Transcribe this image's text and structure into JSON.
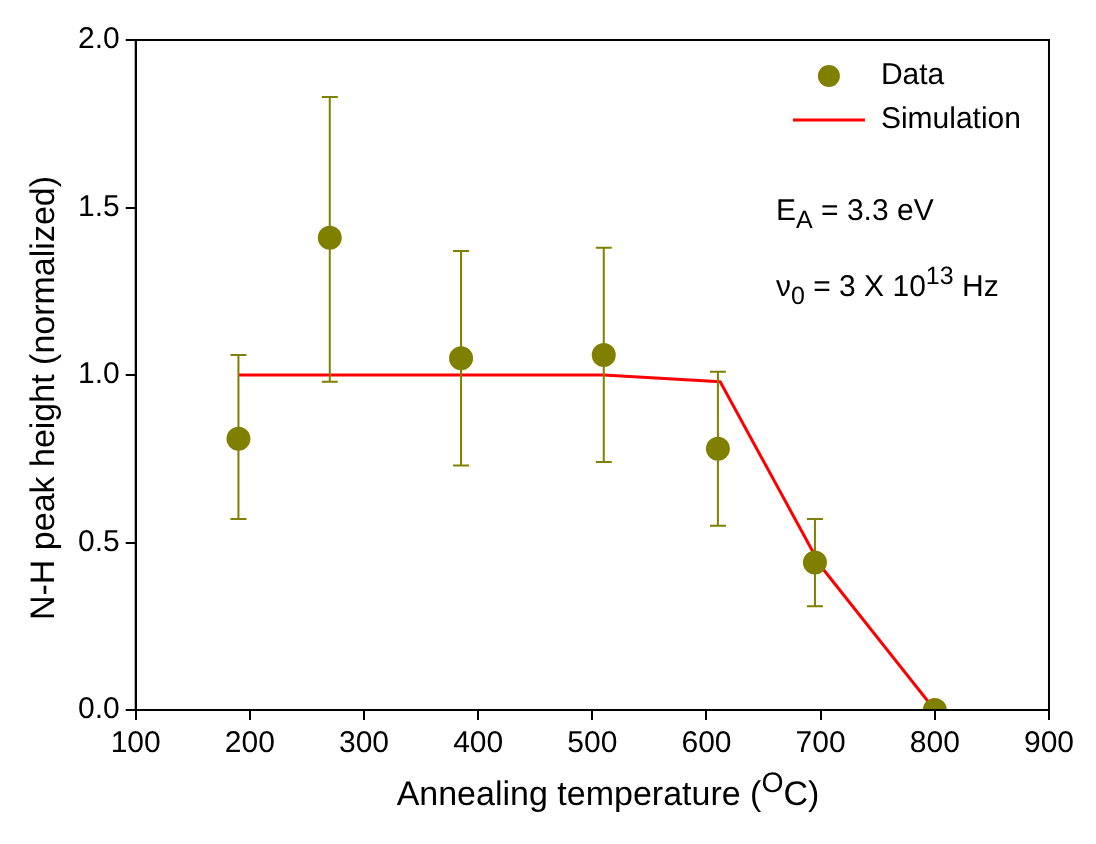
{
  "chart_data": {
    "type": "scatter",
    "xlabel": "Annealing temperature ($^{O}$C)",
    "ylabel": "N-H peak height (normalized)",
    "xlim": [
      100,
      900
    ],
    "xticks": [
      100,
      200,
      300,
      400,
      500,
      600,
      700,
      800,
      900
    ],
    "ylim": [
      0,
      2
    ],
    "yticks": [
      {
        "value": 0,
        "label": "0.0"
      },
      {
        "value": 0.5,
        "label": "0.5"
      },
      {
        "value": 1,
        "label": "1.0"
      },
      {
        "value": 1.5,
        "label": "1.5"
      },
      {
        "value": 2,
        "label": "2.0"
      }
    ],
    "grid": false,
    "legend": "top right",
    "annotations": [
      "E$_{A}$ = 3.3 eV",
      "ν$_{0}$ = 3 X 10$^{13}$ Hz"
    ],
    "series": [
      {
        "name": "Data",
        "type": "scatter",
        "color": "#808000",
        "marker": "circle",
        "x": [
          190,
          270,
          385,
          510,
          610,
          695,
          800
        ],
        "values": [
          0.81,
          1.41,
          1.05,
          1.06,
          0.78,
          0.44,
          0.0
        ],
        "errors": [
          [
            0.57,
            1.06
          ],
          [
            0.98,
            1.83
          ],
          [
            0.73,
            1.37
          ],
          [
            0.74,
            1.38
          ],
          [
            0.55,
            1.01
          ],
          [
            0.31,
            0.57
          ],
          null
        ]
      },
      {
        "name": "Simulation",
        "type": "line",
        "color": "#ff0000",
        "marker": "none",
        "line_style": "solid",
        "x": [
          190,
          510,
          612,
          700,
          800
        ],
        "values": [
          1.0,
          1.0,
          0.98,
          0.43,
          0.0
        ]
      }
    ]
  }
}
